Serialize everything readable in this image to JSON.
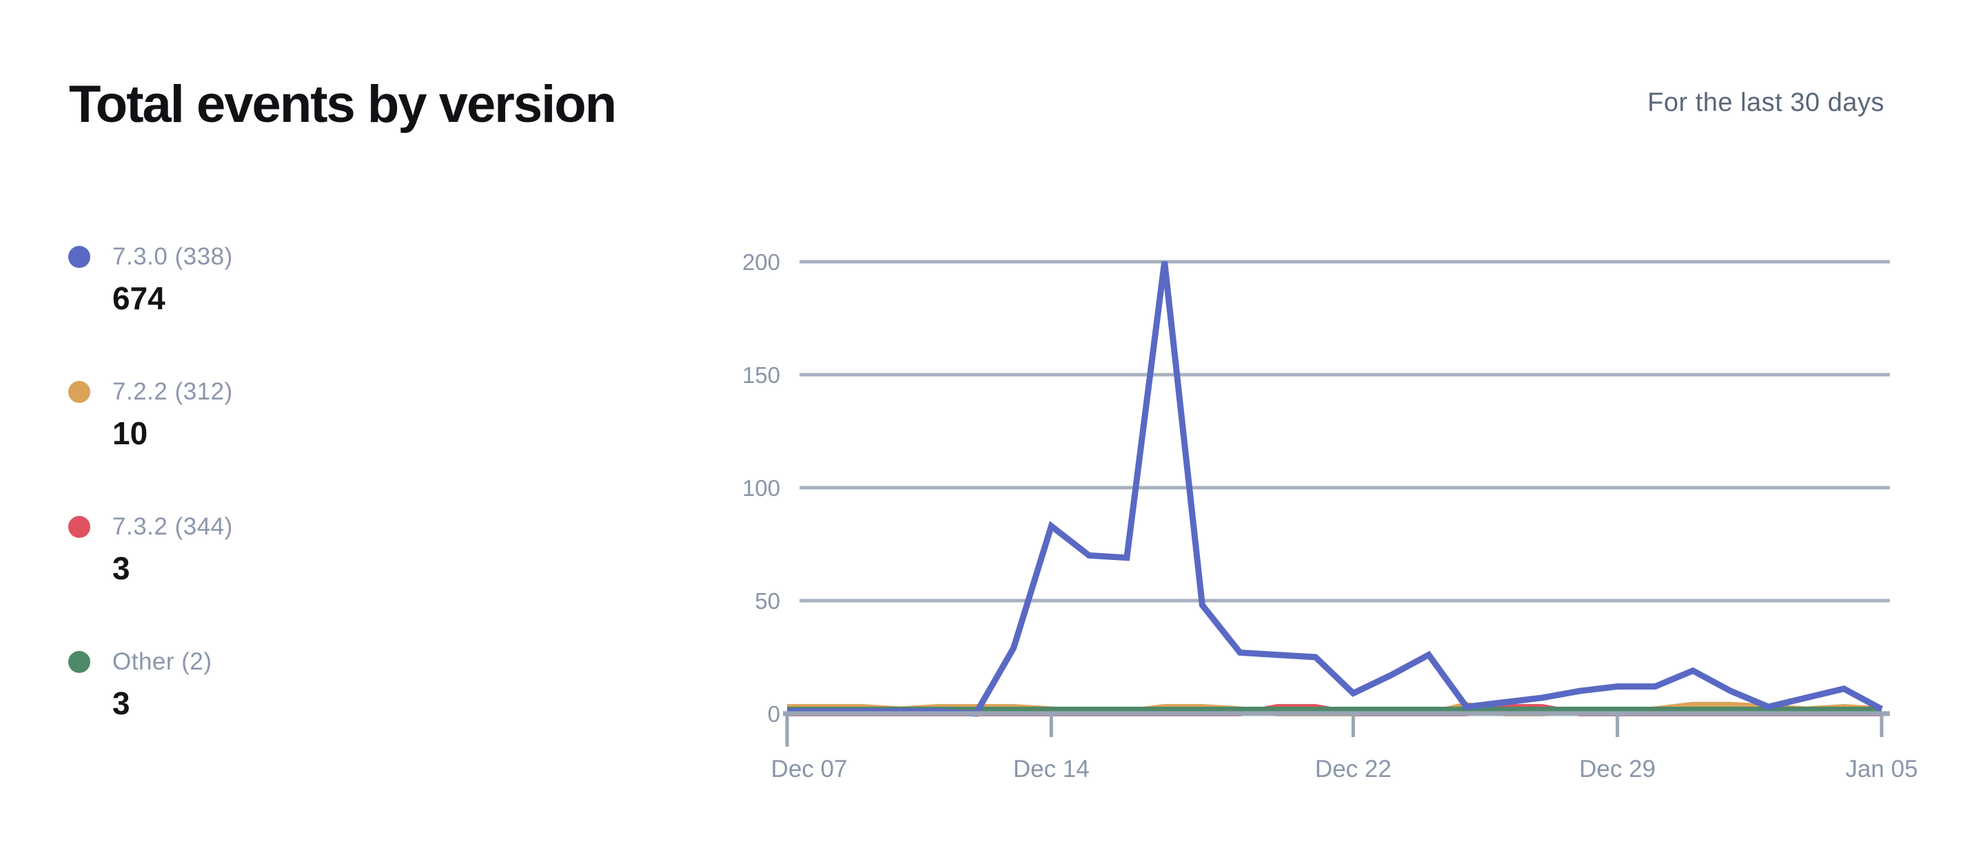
{
  "header": {
    "title": "Total events by version",
    "subtitle": "For the last 30 days"
  },
  "legend": {
    "items": [
      {
        "label": "7.3.0 (338)",
        "value": "674",
        "color": "#5969c4"
      },
      {
        "label": "7.2.2 (312)",
        "value": "10",
        "color": "#dba35a"
      },
      {
        "label": "7.3.2 (344)",
        "value": "3",
        "color": "#df5260"
      },
      {
        "label": "Other (2)",
        "value": "3",
        "color": "#4e8969"
      }
    ]
  },
  "chart_data": {
    "type": "line",
    "title": "Total events by version",
    "subtitle": "For the last 30 days",
    "xlabel": "",
    "ylabel": "",
    "ylim": [
      0,
      200
    ],
    "yticks": [
      0,
      50,
      100,
      150,
      200
    ],
    "grid": "horizontal",
    "legend_position": "left",
    "x": [
      "Dec 07",
      "Dec 08",
      "Dec 09",
      "Dec 10",
      "Dec 11",
      "Dec 12",
      "Dec 13",
      "Dec 14",
      "Dec 15",
      "Dec 16",
      "Dec 17",
      "Dec 18",
      "Dec 19",
      "Dec 20",
      "Dec 21",
      "Dec 22",
      "Dec 23",
      "Dec 24",
      "Dec 25",
      "Dec 26",
      "Dec 27",
      "Dec 28",
      "Dec 29",
      "Dec 30",
      "Dec 31",
      "Jan 01",
      "Jan 02",
      "Jan 03",
      "Jan 04",
      "Jan 05"
    ],
    "xtick_labels": [
      "Dec 07",
      "Dec 14",
      "Dec 22",
      "Dec 29",
      "Jan 05"
    ],
    "xtick_indices": [
      0,
      7,
      15,
      22,
      29
    ],
    "series": [
      {
        "name": "7.3.0 (338)",
        "color": "#5969c4",
        "width": 9,
        "values": [
          1,
          1,
          1,
          1,
          1,
          0,
          29,
          83,
          70,
          69,
          200,
          48,
          27,
          26,
          25,
          9,
          17,
          26,
          3,
          5,
          7,
          10,
          12,
          12,
          19,
          10,
          3,
          7,
          11,
          2
        ]
      },
      {
        "name": "7.2.2 (312)",
        "color": "#dba35a",
        "width": 8,
        "values": [
          3,
          3,
          3,
          2,
          3,
          3,
          3,
          2,
          1,
          1,
          3,
          3,
          2,
          0,
          0,
          0,
          0,
          0,
          4,
          0,
          0,
          1,
          1,
          2,
          4,
          4,
          3,
          2,
          3,
          2
        ]
      },
      {
        "name": "7.3.2 (344)",
        "color": "#df5260",
        "width": 8,
        "values": [
          0,
          0,
          0,
          0,
          0,
          0,
          0,
          0,
          0,
          0,
          0,
          0,
          0,
          3,
          3,
          0,
          0,
          0,
          0,
          3,
          3,
          0,
          0,
          0,
          0,
          0,
          0,
          0,
          0,
          0
        ]
      },
      {
        "name": "Other (2)",
        "color": "#4e8969",
        "width": 7,
        "values": [
          2,
          2,
          2,
          2,
          2,
          2,
          2,
          2,
          2,
          2,
          2,
          2,
          2,
          2,
          2,
          2,
          2,
          2,
          2,
          2,
          2,
          2,
          2,
          2,
          2,
          2,
          2,
          2,
          2,
          2
        ]
      }
    ],
    "draw_order": [
      1,
      2,
      3,
      0
    ],
    "axis_color": "#9aa5b5",
    "gridline_color": "#a7b1c0",
    "tick_label_color": "#8a95a9"
  }
}
